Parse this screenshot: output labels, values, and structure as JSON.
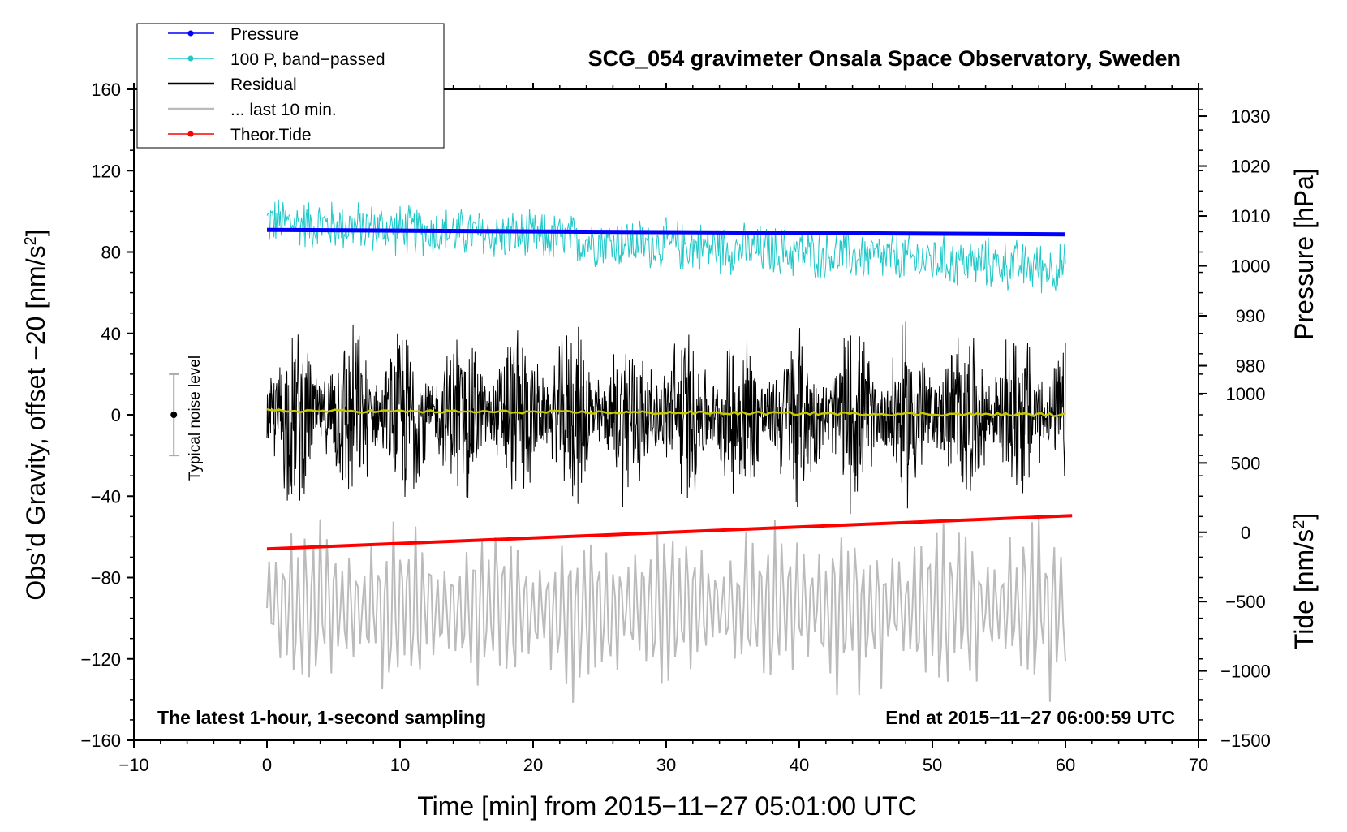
{
  "chart_data": {
    "type": "line",
    "title": "SCG_054 gravimeter Onsala Space Observatory, Sweden",
    "xlabel": "Time [min] from 2015−11−27 05:01:00 UTC",
    "ylabel": "Obs’d Gravity, offset −20 [nm/s",
    "ylabel_sup": "2",
    "ylabel_close": "]",
    "y2label_pressure": "Pressure [hPa]",
    "y2label_tide": "Tide [nm/s",
    "y2label_tide_sup": "2",
    "y2label_tide_close": "]",
    "xlim": [
      -10,
      70
    ],
    "ylim": [
      -160,
      160
    ],
    "pressure_ylim_equivalent": [
      978,
      1034
    ],
    "tide_ylim_equivalent": [
      -1500,
      1500
    ],
    "x_ticks": [
      -10,
      0,
      10,
      20,
      30,
      40,
      50,
      60,
      70
    ],
    "x_tick_labels": [
      "−10",
      "0",
      "10",
      "20",
      "30",
      "40",
      "50",
      "60",
      "70"
    ],
    "y_ticks": [
      -160,
      -120,
      -80,
      -40,
      0,
      40,
      80,
      120,
      160
    ],
    "y_tick_labels": [
      "−160",
      "−120",
      "−80",
      "−40",
      "0",
      "40",
      "80",
      "120",
      "160"
    ],
    "pressure_ticks": [
      980,
      990,
      1000,
      1010,
      1020,
      1030
    ],
    "pressure_tick_labels": [
      "980",
      "990",
      "1000",
      "1010",
      "1020",
      "1030"
    ],
    "tide_ticks": [
      -1500,
      -1000,
      -500,
      0,
      500,
      1000
    ],
    "tide_tick_labels": [
      "−1500",
      "−1000",
      "−500",
      "0",
      "500",
      "1000"
    ],
    "notes": {
      "bottom_left": "The latest 1-hour, 1-second sampling",
      "bottom_right": "End at 2015−11−27 06:00:59 UTC",
      "noise_label": "Typical noise level"
    },
    "noise_bar": {
      "x": -7,
      "center": 0,
      "low": -20,
      "high": 20
    },
    "legend": [
      {
        "name": "Pressure",
        "color": "#0000ff",
        "marker": true
      },
      {
        "name": "100 P, band−passed",
        "color": "#20c8c8",
        "marker": true
      },
      {
        "name": "Residual",
        "color": "#000000",
        "marker": false
      },
      {
        "name": "... last 10 min.",
        "color": "#bbbbbb",
        "marker": false
      },
      {
        "name": "Theor.Tide",
        "color": "#ff0000",
        "marker": true
      }
    ],
    "series": [
      {
        "name": "Pressure",
        "color": "#0000ff",
        "axis": "pressure_hPa",
        "x": [
          0,
          60
        ],
        "values": [
          1007.2,
          1006.3
        ]
      },
      {
        "name": "100 P, band−passed",
        "color": "#20c8c8",
        "axis": "gravity",
        "x": [
          0,
          60
        ],
        "center": [
          95,
          72
        ],
        "amplitude": 12
      },
      {
        "name": "Residual",
        "color": "#000000",
        "axis": "gravity",
        "x": [
          0,
          60
        ],
        "center": [
          0,
          0
        ],
        "amplitude": 50
      },
      {
        "name": "Residual (smoothed)",
        "color": "#c8c800",
        "axis": "gravity",
        "x": [
          0,
          60
        ],
        "values": [
          2,
          0
        ]
      },
      {
        "name": "... last 10 min.",
        "color": "#bbbbbb",
        "axis": "gravity",
        "x": [
          0,
          60
        ],
        "center": [
          -95,
          -95
        ],
        "amplitude": 35
      },
      {
        "name": "Theor.Tide",
        "color": "#ff0000",
        "axis": "tide_nm_s2",
        "x": [
          0,
          60.5
        ],
        "values": [
          -120,
          120
        ]
      }
    ]
  }
}
